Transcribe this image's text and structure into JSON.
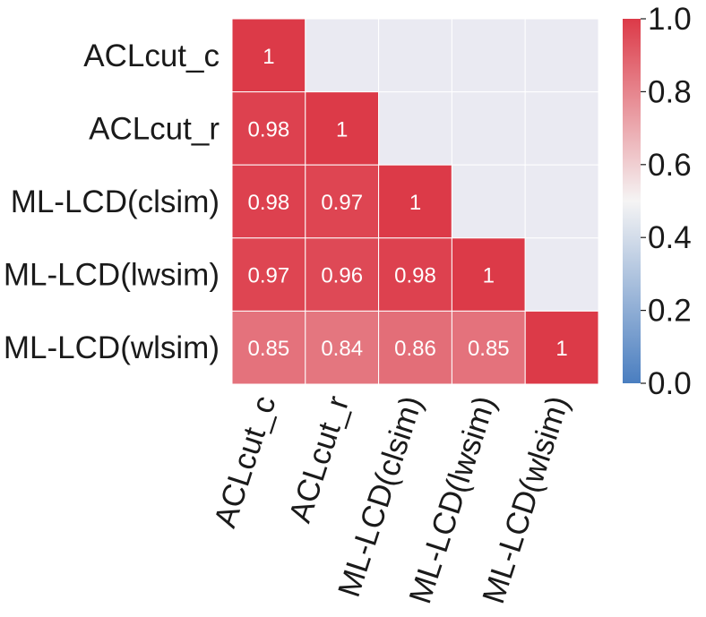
{
  "chart_data": {
    "type": "heatmap",
    "rows": [
      "ACLcut_c",
      "ACLcut_r",
      "ML-LCD(clsim)",
      "ML-LCD(lwsim)",
      "ML-LCD(wlsim)"
    ],
    "columns": [
      "ACLcut_c",
      "ACLcut_r",
      "ML-LCD(clsim)",
      "ML-LCD(lwsim)",
      "ML-LCD(wlsim)"
    ],
    "values": [
      [
        1,
        null,
        null,
        null,
        null
      ],
      [
        0.98,
        1,
        null,
        null,
        null
      ],
      [
        0.98,
        0.97,
        1,
        null,
        null
      ],
      [
        0.97,
        0.96,
        0.98,
        1,
        null
      ],
      [
        0.85,
        0.84,
        0.86,
        0.85,
        1
      ]
    ],
    "mask": "upper-triangle",
    "colorbar": {
      "min": 0.0,
      "max": 1.0,
      "ticks": [
        "0.0",
        "0.2",
        "0.4",
        "0.6",
        "0.8",
        "1.0"
      ]
    },
    "colors": {
      "low": "#4a7ec0",
      "mid": "#f5f4f4",
      "high": "#dc3a48",
      "masked": "#eaeaf2",
      "cell_text": "#ffffff"
    },
    "title": "",
    "xlabel": "",
    "ylabel": ""
  }
}
